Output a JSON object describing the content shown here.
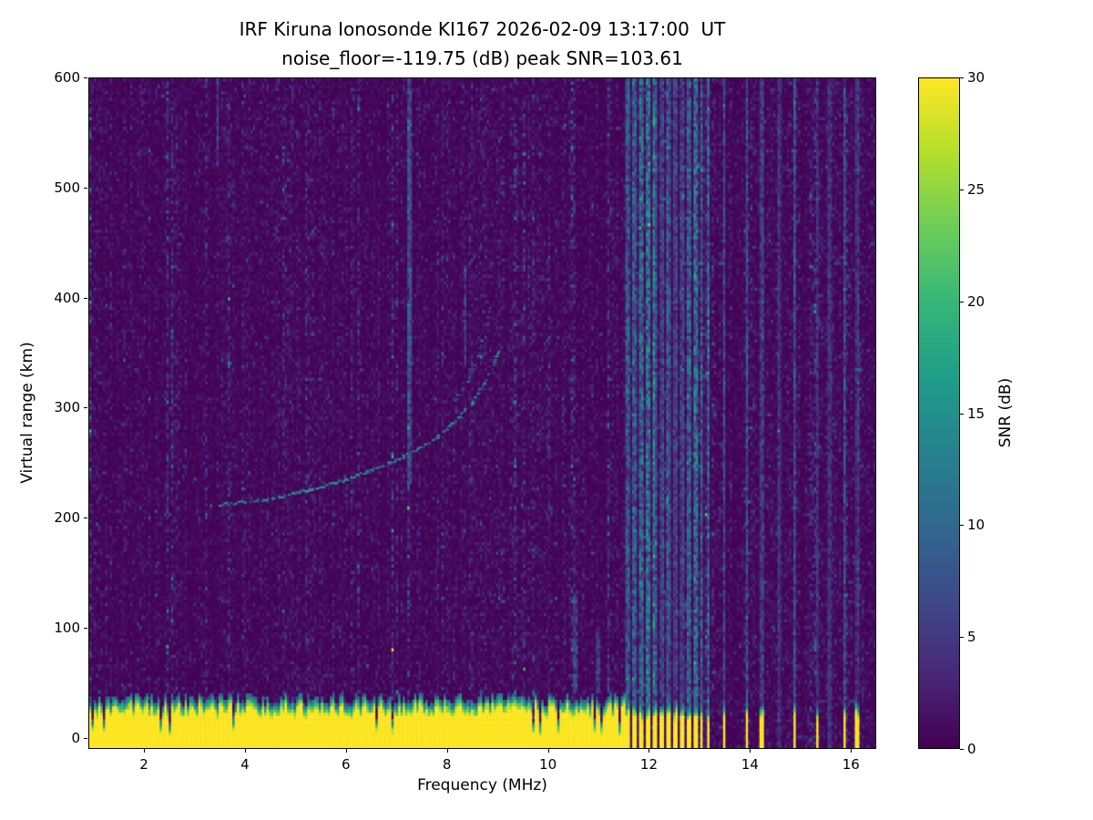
{
  "chart_data": {
    "type": "heatmap",
    "title": "IRF Kiruna Ionosonde KI167 2026-02-09 13:17:00  UT",
    "subtitle": "noise_floor=-119.75 (dB) peak SNR=103.61",
    "xlabel": "Frequency (MHz)",
    "ylabel": "Virtual range (km)",
    "colorbar_label": "SNR (dB)",
    "colormap": "viridis",
    "xlim": [
      0.9,
      16.5
    ],
    "ylim": [
      -10,
      600
    ],
    "clim": [
      0,
      30
    ],
    "x_ticks": [
      2,
      4,
      6,
      8,
      10,
      12,
      14,
      16
    ],
    "y_ticks": [
      0,
      100,
      200,
      300,
      400,
      500,
      600
    ],
    "colorbar_ticks": [
      0,
      5,
      10,
      15,
      20,
      25,
      30
    ],
    "noise_floor_dB": -119.75,
    "peak_SNR_dB": 103.61,
    "features": {
      "background_snr_dB": 0,
      "ground_clutter_band": {
        "x_range_mhz": [
          0.9,
          11.55
        ],
        "top_km_mean": 26,
        "top_km_ragged": 12,
        "snr_dB": 30
      },
      "echo_trace": {
        "snr_dB": 14,
        "points_mhz_km": [
          [
            3.3,
            212
          ],
          [
            3.6,
            213
          ],
          [
            4.0,
            215
          ],
          [
            4.5,
            218
          ],
          [
            5.0,
            223
          ],
          [
            5.5,
            229
          ],
          [
            6.0,
            236
          ],
          [
            6.5,
            244
          ],
          [
            7.0,
            254
          ],
          [
            7.4,
            263
          ],
          [
            7.8,
            275
          ],
          [
            8.2,
            291
          ],
          [
            8.5,
            307
          ],
          [
            8.7,
            322
          ],
          [
            8.9,
            340
          ],
          [
            9.0,
            352
          ]
        ]
      },
      "second_trace": {
        "snr_dB": 8,
        "points_mhz_km": [
          [
            8.0,
            300
          ],
          [
            8.4,
            325
          ],
          [
            8.7,
            362
          ],
          [
            8.85,
            392
          ]
        ]
      },
      "rfi_band": {
        "x_range_mhz": [
          11.55,
          13.25
        ],
        "stripe_spacing_mhz": 0.135,
        "stripe_width_frac": 0.45,
        "snr_dB": 12,
        "ground_bars": true
      },
      "rfi_lines": [
        {
          "f_mhz": 13.5,
          "snr_dB": 10,
          "ground_bar": true
        },
        {
          "f_mhz": 13.95,
          "snr_dB": 9,
          "ground_bar": true
        },
        {
          "f_mhz": 14.25,
          "snr_dB": 8,
          "ground_bar": true
        },
        {
          "f_mhz": 14.6,
          "snr_dB": 5,
          "ground_bar": false
        },
        {
          "f_mhz": 14.9,
          "snr_dB": 9,
          "ground_bar": true
        },
        {
          "f_mhz": 15.35,
          "snr_dB": 8,
          "ground_bar": true
        },
        {
          "f_mhz": 15.6,
          "snr_dB": 5,
          "ground_bar": false
        },
        {
          "f_mhz": 15.9,
          "snr_dB": 9,
          "ground_bar": true
        },
        {
          "f_mhz": 16.15,
          "snr_dB": 7,
          "ground_bar": true
        }
      ],
      "vertical_streaks": [
        {
          "f_mhz": 7.25,
          "km_range": [
            230,
            600
          ],
          "snr_dB": 7
        },
        {
          "f_mhz": 3.45,
          "km_range": [
            520,
            600
          ],
          "snr_dB": 7
        },
        {
          "f_mhz": 8.35,
          "km_range": [
            340,
            430
          ],
          "snr_dB": 6
        },
        {
          "f_mhz": 10.55,
          "km_range": [
            40,
            130
          ],
          "snr_dB": 7
        },
        {
          "f_mhz": 11.0,
          "km_range": [
            40,
            100
          ],
          "snr_dB": 5
        }
      ]
    }
  }
}
